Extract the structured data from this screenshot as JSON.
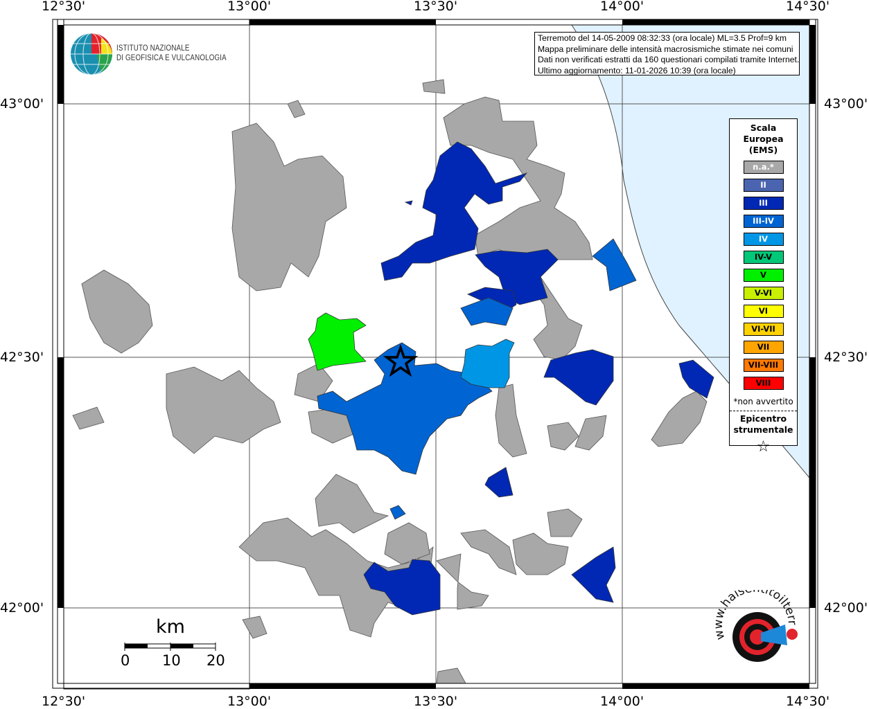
{
  "map": {
    "longitude_ticks": [
      "12°30'",
      "13°00'",
      "13°30'",
      "14°00'",
      "14°30'"
    ],
    "latitude_ticks": [
      "43°00'",
      "42°30'",
      "42°00'"
    ],
    "sea_color": "#e0f2ff",
    "na_color": "#a8a8a8"
  },
  "info": {
    "line1": "Terremoto del 14-05-2009 08:32:33 (ora locale) ML=3.5 Prof=9 km",
    "line2": "Mappa preliminare delle intensità macrosismiche stimate nei comuni",
    "line3": "Dati non verificati estratti da 160 questionari compilati tramite Internet.",
    "line4": "Ultimo aggiornamento: 11-01-2026 10:39 (ora locale)"
  },
  "logo_ingv": {
    "line1": "ISTITUTO NAZIONALE",
    "line2": "DI GEOFISICA E VULCANOLOGIA"
  },
  "logo_hsit": {
    "text": "www.haisentitoilterremoto.it"
  },
  "legend": {
    "title": [
      "Scala",
      "Europea",
      "(EMS)"
    ],
    "items": [
      {
        "label": "n.a.*",
        "color": "#a8a8a8",
        "text_color": "#ffffff"
      },
      {
        "label": "II",
        "color": "#4a64b0",
        "text_color": "#ffffff"
      },
      {
        "label": "III",
        "color": "#0028b4",
        "text_color": "#ffffff"
      },
      {
        "label": "III-IV",
        "color": "#0064d2",
        "text_color": "#ffffff"
      },
      {
        "label": "IV",
        "color": "#0096e6",
        "text_color": "#ffffff"
      },
      {
        "label": "IV-V",
        "color": "#00c878",
        "text_color": "#000000"
      },
      {
        "label": "V",
        "color": "#00f000",
        "text_color": "#000000"
      },
      {
        "label": "V-VI",
        "color": "#c8f000",
        "text_color": "#000000"
      },
      {
        "label": "VI",
        "color": "#ffff00",
        "text_color": "#000000"
      },
      {
        "label": "VI-VII",
        "color": "#ffd200",
        "text_color": "#000000"
      },
      {
        "label": "VII",
        "color": "#ffa500",
        "text_color": "#000000"
      },
      {
        "label": "VII-VIII",
        "color": "#ff7800",
        "text_color": "#000000"
      },
      {
        "label": "VIII",
        "color": "#ff0000",
        "text_color": "#000000"
      }
    ],
    "note": "*non avvertito",
    "epicenter_label": [
      "Epicentro",
      "strumentale"
    ],
    "epicenter_symbol": "☆"
  },
  "scalebar": {
    "unit": "km",
    "labels": [
      "0",
      "10",
      "20"
    ]
  }
}
